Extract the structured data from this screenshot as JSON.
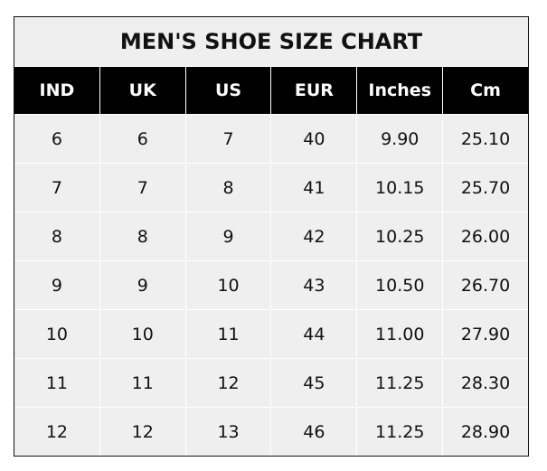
{
  "chart_data": {
    "type": "table",
    "title": "MEN'S SHOE SIZE CHART",
    "columns": [
      "IND",
      "UK",
      "US",
      "EUR",
      "Inches",
      "Cm"
    ],
    "rows": [
      [
        "6",
        "6",
        "7",
        "40",
        "9.90",
        "25.10"
      ],
      [
        "7",
        "7",
        "8",
        "41",
        "10.15",
        "25.70"
      ],
      [
        "8",
        "8",
        "9",
        "42",
        "10.25",
        "26.00"
      ],
      [
        "9",
        "9",
        "10",
        "43",
        "10.50",
        "26.70"
      ],
      [
        "10",
        "10",
        "11",
        "44",
        "11.00",
        "27.90"
      ],
      [
        "11",
        "11",
        "12",
        "45",
        "11.25",
        "28.30"
      ],
      [
        "12",
        "12",
        "13",
        "46",
        "11.25",
        "28.90"
      ]
    ],
    "colors": {
      "header_bg": "#000000",
      "header_text": "#ffffff",
      "cell_bg": "#efefef",
      "grid": "#ffffff"
    }
  }
}
